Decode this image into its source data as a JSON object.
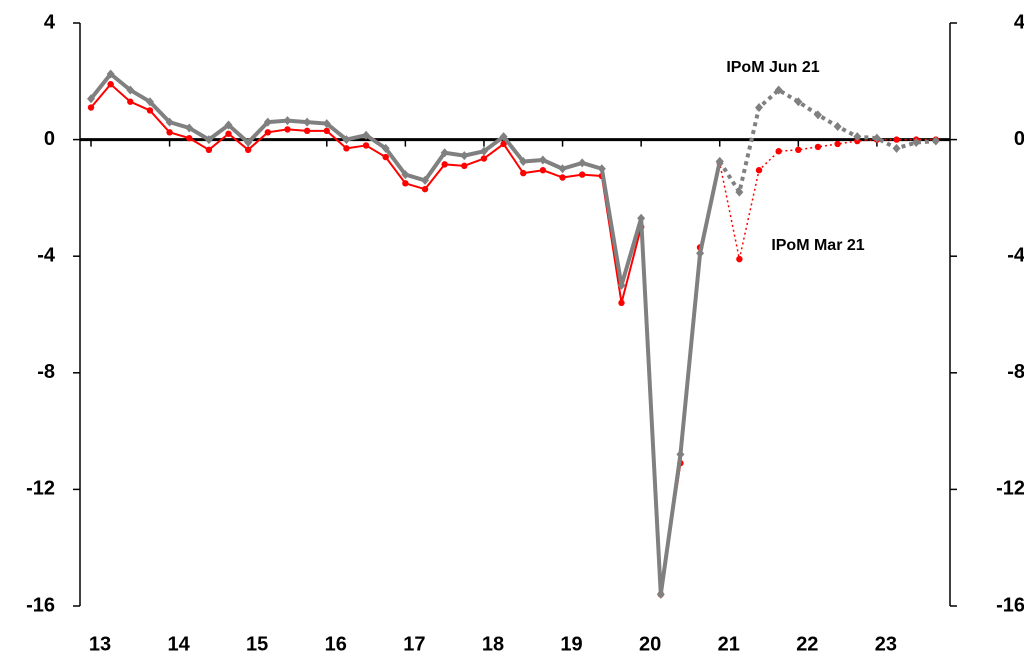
{
  "chart_data": {
    "type": "line",
    "x": [
      2013,
      2013.25,
      2013.5,
      2013.75,
      2014,
      2014.25,
      2014.5,
      2014.75,
      2015,
      2015.25,
      2015.5,
      2015.75,
      2016,
      2016.25,
      2016.5,
      2016.75,
      2017,
      2017.25,
      2017.5,
      2017.75,
      2018,
      2018.25,
      2018.5,
      2018.75,
      2019,
      2019.25,
      2019.5,
      2019.75,
      2020,
      2020.25,
      2020.5,
      2020.75,
      2021,
      2021.25,
      2021.5,
      2021.75,
      2022,
      2022.25,
      2022.5,
      2022.75,
      2023,
      2023.25,
      2023.5,
      2023.75
    ],
    "series": [
      {
        "color": "#ff0000",
        "dash": "solid",
        "marker": "circle",
        "width": 2,
        "values": [
          1.1,
          1.9,
          1.3,
          1.0,
          0.25,
          0.05,
          -0.35,
          0.2,
          -0.35,
          0.25,
          0.35,
          0.3,
          0.3,
          -0.3,
          -0.2,
          -0.6,
          -1.5,
          -1.7,
          -0.85,
          -0.9,
          -0.65,
          -0.15,
          -1.15,
          -1.05,
          -1.3,
          -1.2,
          -1.25,
          -5.6,
          -3.0,
          -15.6,
          -11.1,
          -3.7,
          null,
          null,
          null,
          null,
          null,
          null,
          null,
          null,
          null,
          null,
          null,
          null
        ]
      },
      {
        "color": "#ff0000",
        "dash": "dotted",
        "marker": "circle",
        "width": 1.5,
        "values": [
          null,
          null,
          null,
          null,
          null,
          null,
          null,
          null,
          null,
          null,
          null,
          null,
          null,
          null,
          null,
          null,
          null,
          null,
          null,
          null,
          null,
          null,
          null,
          null,
          null,
          null,
          null,
          null,
          null,
          null,
          null,
          -3.7,
          -0.8,
          -4.1,
          -1.05,
          -0.4,
          -0.35,
          -0.25,
          -0.15,
          -0.05,
          0,
          0,
          0,
          0
        ]
      },
      {
        "color": "#808080",
        "dash": "solid",
        "marker": "diamond",
        "width": 4,
        "values": [
          1.4,
          2.25,
          1.7,
          1.3,
          0.6,
          0.4,
          0.0,
          0.5,
          -0.1,
          0.6,
          0.65,
          0.6,
          0.55,
          0.0,
          0.15,
          -0.3,
          -1.2,
          -1.4,
          -0.45,
          -0.55,
          -0.4,
          0.1,
          -0.75,
          -0.7,
          -1.0,
          -0.8,
          -1.0,
          -5.0,
          -2.7,
          -15.6,
          -10.8,
          -3.9,
          -0.75,
          null,
          null,
          null,
          null,
          null,
          null,
          null,
          null,
          null,
          null,
          null
        ]
      },
      {
        "color": "#808080",
        "dash": "dotted",
        "marker": "diamond",
        "width": 4,
        "values": [
          null,
          null,
          null,
          null,
          null,
          null,
          null,
          null,
          null,
          null,
          null,
          null,
          null,
          null,
          null,
          null,
          null,
          null,
          null,
          null,
          null,
          null,
          null,
          null,
          null,
          null,
          null,
          null,
          null,
          null,
          null,
          null,
          -0.75,
          -1.8,
          1.1,
          1.7,
          1.3,
          0.85,
          0.45,
          0.1,
          0.05,
          -0.3,
          -0.1,
          -0.05
        ]
      }
    ],
    "annotations": [
      {
        "text": "IPoM Jun 21",
        "color": "#808080"
      },
      {
        "text": "IPoM Mar 21",
        "color": "#ff0000"
      }
    ],
    "xlim": [
      2012.86,
      2023.93
    ],
    "xticks": [
      {
        "value": 2013,
        "label": "13"
      },
      {
        "value": 2014,
        "label": "14"
      },
      {
        "value": 2015,
        "label": "15"
      },
      {
        "value": 2016,
        "label": "16"
      },
      {
        "value": 2017,
        "label": "17"
      },
      {
        "value": 2018,
        "label": "18"
      },
      {
        "value": 2019,
        "label": "19"
      },
      {
        "value": 2020,
        "label": "20"
      },
      {
        "value": 2021,
        "label": "21"
      },
      {
        "value": 2022,
        "label": "22"
      },
      {
        "value": 2023,
        "label": "23"
      }
    ],
    "ylim": [
      -16,
      4
    ],
    "yticks": [
      -16,
      -12,
      -8,
      -4,
      0,
      4
    ],
    "y2lim": [
      -16,
      4
    ],
    "y2ticks": [
      -16,
      -12,
      -8,
      -4,
      0,
      4
    ]
  }
}
